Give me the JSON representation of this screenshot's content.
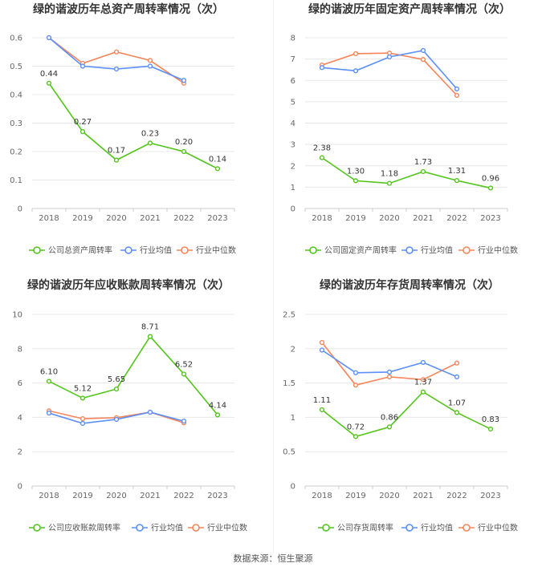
{
  "source": "数据来源：恒生聚源",
  "colors": {
    "company": "#52c41a",
    "avg": "#5b8ff9",
    "median": "#f6855a"
  },
  "legend": {
    "avg": "行业均值",
    "median": "行业中位数"
  },
  "chart_data": [
    {
      "type": "line",
      "title": "绿的谐波历年总资产周转率情况（次）",
      "categories": [
        "2018",
        "2019",
        "2020",
        "2021",
        "2022",
        "2023"
      ],
      "ylim": [
        0,
        0.6
      ],
      "yticks": [
        "0",
        "0.1",
        "0.2",
        "0.3",
        "0.4",
        "0.5",
        "0.6"
      ],
      "series": [
        {
          "name": "公司总资产周转率",
          "role": "company",
          "values": [
            0.44,
            0.27,
            0.17,
            0.23,
            0.2,
            0.14
          ],
          "labels": [
            "0.44",
            "0.27",
            "0.17",
            "0.23",
            "0.20",
            "0.14"
          ]
        },
        {
          "name": "行业均值",
          "role": "avg",
          "values": [
            0.6,
            0.5,
            0.49,
            0.5,
            0.45,
            null
          ]
        },
        {
          "name": "行业中位数",
          "role": "median",
          "values": [
            0.6,
            0.51,
            0.55,
            0.52,
            0.44,
            null
          ]
        }
      ]
    },
    {
      "type": "line",
      "title": "绿的谐波历年固定资产周转率情况（次）",
      "categories": [
        "2018",
        "2019",
        "2020",
        "2021",
        "2022",
        "2023"
      ],
      "ylim": [
        0,
        8
      ],
      "yticks": [
        "0",
        "1",
        "2",
        "3",
        "4",
        "5",
        "6",
        "7",
        "8"
      ],
      "series": [
        {
          "name": "公司固定资产周转率",
          "role": "company",
          "values": [
            2.38,
            1.3,
            1.18,
            1.73,
            1.31,
            0.96
          ],
          "labels": [
            "2.38",
            "1.30",
            "1.18",
            "1.73",
            "1.31",
            "0.96"
          ]
        },
        {
          "name": "行业均值",
          "role": "avg",
          "values": [
            6.6,
            6.45,
            7.1,
            7.4,
            5.6,
            null
          ]
        },
        {
          "name": "行业中位数",
          "role": "median",
          "values": [
            6.72,
            7.25,
            7.28,
            6.98,
            5.3,
            null
          ]
        }
      ]
    },
    {
      "type": "line",
      "title": "绿的谐波历年应收账款周转率情况（次）",
      "categories": [
        "2018",
        "2019",
        "2020",
        "2021",
        "2022",
        "2023"
      ],
      "ylim": [
        0,
        10
      ],
      "yticks": [
        "0",
        "2",
        "4",
        "6",
        "8",
        "10"
      ],
      "series": [
        {
          "name": "公司应收账款周转率",
          "role": "company",
          "values": [
            6.1,
            5.12,
            5.65,
            8.71,
            6.52,
            4.14
          ],
          "labels": [
            "6.10",
            "5.12",
            "5.65",
            "8.71",
            "6.52",
            "4.14"
          ]
        },
        {
          "name": "行业均值",
          "role": "avg",
          "values": [
            4.25,
            3.65,
            3.88,
            4.3,
            3.78,
            null
          ]
        },
        {
          "name": "行业中位数",
          "role": "median",
          "values": [
            4.38,
            3.92,
            3.98,
            4.3,
            3.68,
            null
          ]
        }
      ]
    },
    {
      "type": "line",
      "title": "绿的谐波历年存货周转率情况（次）",
      "categories": [
        "2018",
        "2019",
        "2020",
        "2021",
        "2022",
        "2023"
      ],
      "ylim": [
        0,
        2.5
      ],
      "yticks": [
        "0",
        "0.5",
        "1",
        "1.5",
        "2",
        "2.5"
      ],
      "series": [
        {
          "name": "公司存货周转率",
          "role": "company",
          "values": [
            1.11,
            0.72,
            0.86,
            1.37,
            1.07,
            0.83
          ],
          "labels": [
            "1.11",
            "0.72",
            "0.86",
            "1.37",
            "1.07",
            "0.83"
          ]
        },
        {
          "name": "行业均值",
          "role": "avg",
          "values": [
            1.98,
            1.65,
            1.66,
            1.8,
            1.59,
            null
          ]
        },
        {
          "name": "行业中位数",
          "role": "median",
          "values": [
            2.09,
            1.47,
            1.59,
            1.55,
            1.79,
            null
          ]
        }
      ]
    }
  ]
}
